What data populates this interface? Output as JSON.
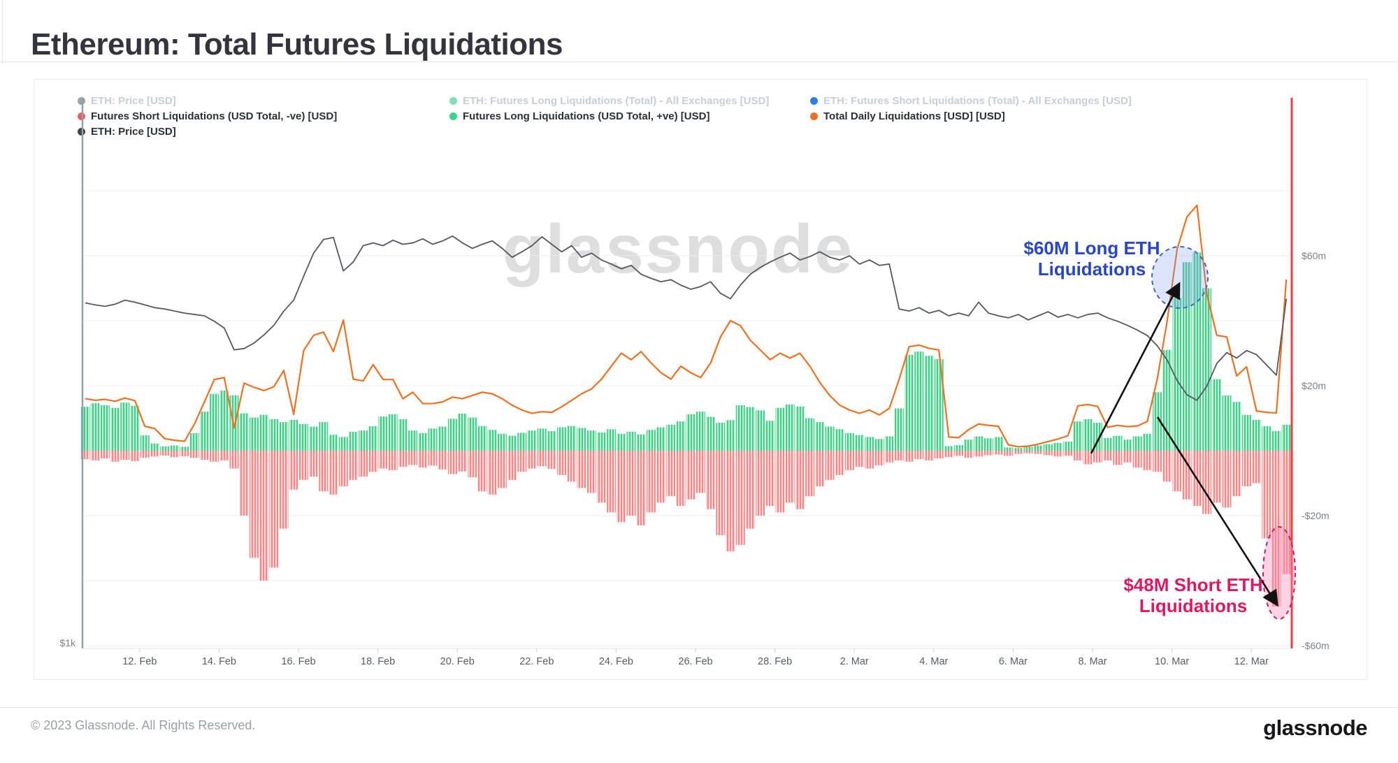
{
  "header": {
    "title": "Ethereum: Total Futures Liquidations"
  },
  "legend": {
    "columns": [
      {
        "rows": [
          {
            "dot_color": "#9aa2ac",
            "label": "ETH: Price [USD]",
            "faded": true
          },
          {
            "dot_color": "#f25c5c",
            "label": "Futures Short Liquidations (USD Total, -ve) [USD]",
            "faded": false
          },
          {
            "dot_color": "#3f434a",
            "label": "ETH: Price [USD]",
            "faded": false
          }
        ]
      },
      {
        "rows": [
          {
            "dot_color": "#7de2ad",
            "label": "ETH: Futures Long Liquidations (Total) - All Exchanges [USD]",
            "faded": true
          },
          {
            "dot_color": "#35d58c",
            "label": "Futures Long Liquidations (USD Total, +ve) [USD]",
            "faded": false
          }
        ]
      },
      {
        "rows": [
          {
            "dot_color": "#2e7ee8",
            "label": "ETH: Futures Short Liquidations (Total) - All Exchanges [USD]",
            "faded": true
          },
          {
            "dot_color": "#f07020",
            "label": "Total Daily Liquidations [USD] [USD]",
            "faded": false
          }
        ]
      }
    ]
  },
  "annotations": {
    "long": {
      "line1": "$60M Long ETH",
      "line2": "Liquidations",
      "color": "#2746c8"
    },
    "short": {
      "line1": "$48M Short ETH",
      "line2": "Liquidations",
      "color": "#e0185f"
    }
  },
  "watermark": "glassnode",
  "axes": {
    "left_label": "$1k",
    "right_labels": [
      {
        "text": "$60m",
        "value": 60
      },
      {
        "text": "$20m",
        "value": 20
      },
      {
        "text": "-$20m",
        "value": -20
      },
      {
        "text": "-$60m",
        "value": -60
      }
    ],
    "x_tick_labels": [
      "12. Feb",
      "14. Feb",
      "16. Feb",
      "18. Feb",
      "20. Feb",
      "22. Feb",
      "24. Feb",
      "26. Feb",
      "28. Feb",
      "2. Mar",
      "4. Mar",
      "6. Mar",
      "8. Mar",
      "10. Mar",
      "12. Mar"
    ],
    "gridline_values_musd": [
      80,
      60,
      40,
      20,
      -20,
      -40,
      -60
    ]
  },
  "footer": {
    "copyright": "© 2023 Glassnode. All Rights Reserved.",
    "logo": "glassnode"
  },
  "chart_data": {
    "type": "mixed",
    "title": "Ethereum: Total Futures Liquidations",
    "x": {
      "start_date": "11. Feb",
      "end_date": "13. Mar",
      "points_per_day": 4,
      "n_points": 122,
      "first_tick_day": 1.37,
      "tick_step_days": 2,
      "tick_labels": [
        "12. Feb",
        "14. Feb",
        "16. Feb",
        "18. Feb",
        "20. Feb",
        "22. Feb",
        "24. Feb",
        "26. Feb",
        "28. Feb",
        "2. Mar",
        "4. Mar",
        "6. Mar",
        "8. Mar",
        "10. Mar",
        "12. Mar"
      ]
    },
    "y_liquidations": {
      "unit": "million USD",
      "ylim": [
        -65,
        85
      ],
      "ticks": [
        60,
        20,
        -20,
        -60
      ]
    },
    "y_price": {
      "unit": "USD",
      "visible_tick": "$1k"
    },
    "series": [
      {
        "name": "Futures Long Liquidations (USD Total, +ve) [USD]",
        "type": "bar",
        "color": "#44cd8d",
        "unit": "million USD",
        "values": [
          13.5,
          14.6,
          14.0,
          13.2,
          14.8,
          13.8,
          4.7,
          2.2,
          1.3,
          1.6,
          1.2,
          5.4,
          12.0,
          17.5,
          18.5,
          17.0,
          11.5,
          10.2,
          11.0,
          9.7,
          8.8,
          9.5,
          8.2,
          7.4,
          8.8,
          4.9,
          4.2,
          5.8,
          6.2,
          7.5,
          10.5,
          11.2,
          9.7,
          6.2,
          5.4,
          6.8,
          7.4,
          9.8,
          11.4,
          10.2,
          7.6,
          6.4,
          5.2,
          4.6,
          5.5,
          6.2,
          6.8,
          6.0,
          7.2,
          7.6,
          7.0,
          6.2,
          5.6,
          6.6,
          5.2,
          5.8,
          5.0,
          6.4,
          7.2,
          8.0,
          9.0,
          11.2,
          12.0,
          10.4,
          8.6,
          9.4,
          14.0,
          13.4,
          12.4,
          9.2,
          13.2,
          14.2,
          13.6,
          10.0,
          8.8,
          7.4,
          6.6,
          5.4,
          4.8,
          4.2,
          3.6,
          4.4,
          13.0,
          29.5,
          30.5,
          29.2,
          28.2,
          1.4,
          1.7,
          3.4,
          4.4,
          3.8,
          4.2,
          1.0,
          0.8,
          1.2,
          1.6,
          2.0,
          2.4,
          2.8,
          9.0,
          9.7,
          8.6,
          3.9,
          4.6,
          3.4,
          4.4,
          5.2,
          18.0,
          31.0,
          47.0,
          58.0,
          61.0,
          50.0,
          22.0,
          17.0,
          15.0,
          11.0,
          9.5,
          7.5,
          6.0,
          8.0
        ]
      },
      {
        "name": "Futures Short Liquidations (USD Total, -ve) [USD]",
        "type": "bar",
        "color": "#ee8989",
        "unit": "million USD",
        "values": [
          -2.6,
          -3.0,
          -2.4,
          -3.4,
          -2.8,
          -3.2,
          -2.2,
          -1.8,
          -1.5,
          -2.0,
          -1.7,
          -2.2,
          -2.8,
          -3.4,
          -3.0,
          -5.5,
          -20,
          -33,
          -40,
          -36,
          -24,
          -12,
          -9,
          -8,
          -12.5,
          -13.5,
          -11,
          -9,
          -8,
          -6.5,
          -5.5,
          -6.0,
          -5.0,
          -4.4,
          -5.2,
          -4.6,
          -5.8,
          -7.2,
          -6.4,
          -8.2,
          -12.5,
          -13.5,
          -11.5,
          -9.0,
          -6.5,
          -5.5,
          -4.8,
          -5.6,
          -7.5,
          -9.5,
          -11.5,
          -13,
          -16,
          -19,
          -22,
          -20,
          -23,
          -19,
          -16,
          -14,
          -17,
          -15,
          -13,
          -18,
          -26,
          -31,
          -29,
          -24,
          -20,
          -17,
          -19,
          -16,
          -18,
          -14,
          -11,
          -9.0,
          -7.5,
          -6.0,
          -5.0,
          -5.5,
          -4.5,
          -3.6,
          -3.0,
          -3.4,
          -2.6,
          -3.0,
          -2.4,
          -2.0,
          -1.6,
          -2.2,
          -1.8,
          -1.4,
          -1.2,
          -1.6,
          -1.0,
          -0.8,
          -1.0,
          -1.4,
          -1.8,
          -1.6,
          -3.0,
          -4.2,
          -3.6,
          -3.0,
          -4.4,
          -3.6,
          -5.2,
          -6.0,
          -6.5,
          -9.5,
          -12.5,
          -15,
          -17,
          -19.5,
          -16,
          -17.5,
          -14,
          -11,
          -10,
          -27,
          -48,
          -38
        ]
      },
      {
        "name": "Total Daily Liquidations [USD] [USD]",
        "type": "line",
        "color": "#f07020",
        "unit": "million USD",
        "values": [
          16,
          15.5,
          15.8,
          15.2,
          16.2,
          15.4,
          7.5,
          6.8,
          3.7,
          3.2,
          2.9,
          8.2,
          15.0,
          21.9,
          22.5,
          7.0,
          20.8,
          19.5,
          18.5,
          19.7,
          24.7,
          11.2,
          30.8,
          35.5,
          36.5,
          30.5,
          40.2,
          22.0,
          21.5,
          26.5,
          21.9,
          21.9,
          16.0,
          18.0,
          14.5,
          14.5,
          15.0,
          16.5,
          16.0,
          17.0,
          18.0,
          17.5,
          16.0,
          14.0,
          12.5,
          11.5,
          12.0,
          11.8,
          13.5,
          15.5,
          17.5,
          19.0,
          22.0,
          26.0,
          30.0,
          28.0,
          30.5,
          27.0,
          24.0,
          22.0,
          26.0,
          24.0,
          22.5,
          27.0,
          35.0,
          40.0,
          38.5,
          34.0,
          31.0,
          28.0,
          30.0,
          28.5,
          30.0,
          26.0,
          21.0,
          17.0,
          14.0,
          12.5,
          11.5,
          12.5,
          11.0,
          13.0,
          22.0,
          32.0,
          32.5,
          31.5,
          31.0,
          4.2,
          4.0,
          6.5,
          8.2,
          7.8,
          7.5,
          1.8,
          1.2,
          1.4,
          2.0,
          2.8,
          3.6,
          4.6,
          13.8,
          14.2,
          13.6,
          7.2,
          7.8,
          7.4,
          7.6,
          9.0,
          22.0,
          40.0,
          62.0,
          72.0,
          75.5,
          48.0,
          35.5,
          35.0,
          23.0,
          25.8,
          12.2,
          11.8,
          11.6,
          52.7
        ]
      },
      {
        "name": "ETH: Price [USD]",
        "type": "line",
        "color": "#54585f",
        "unit": "USD",
        "axis": "price",
        "values": [
          1499,
          1496,
          1494,
          1497,
          1503,
          1500,
          1496,
          1492,
          1490,
          1487,
          1484,
          1482,
          1480,
          1472,
          1462,
          1430,
          1432,
          1440,
          1452,
          1466,
          1487,
          1503,
          1538,
          1572,
          1592,
          1595,
          1546,
          1559,
          1583,
          1587,
          1583,
          1591,
          1585,
          1587,
          1593,
          1585,
          1590,
          1597,
          1587,
          1579,
          1585,
          1590,
          1579,
          1566,
          1574,
          1583,
          1596,
          1585,
          1574,
          1583,
          1566,
          1572,
          1562,
          1556,
          1549,
          1554,
          1541,
          1535,
          1530,
          1533,
          1525,
          1519,
          1523,
          1530,
          1513,
          1505,
          1525,
          1541,
          1551,
          1559,
          1566,
          1572,
          1562,
          1567,
          1574,
          1566,
          1562,
          1568,
          1556,
          1562,
          1554,
          1556,
          1490,
          1487,
          1492,
          1484,
          1488,
          1480,
          1484,
          1480,
          1500,
          1484,
          1480,
          1477,
          1482,
          1474,
          1480,
          1486,
          1478,
          1482,
          1477,
          1482,
          1484,
          1477,
          1472,
          1466,
          1459,
          1451,
          1436,
          1415,
          1385,
          1364,
          1356,
          1377,
          1410,
          1426,
          1418,
          1429,
          1423,
          1408,
          1393,
          1505
        ]
      }
    ],
    "callouts": [
      {
        "text": "$60M Long ETH Liquidations",
        "value_musd": 60,
        "color": "#2746c8"
      },
      {
        "text": "$48M Short ETH Liquidations",
        "value_musd": -48,
        "color": "#e0185f"
      }
    ]
  }
}
